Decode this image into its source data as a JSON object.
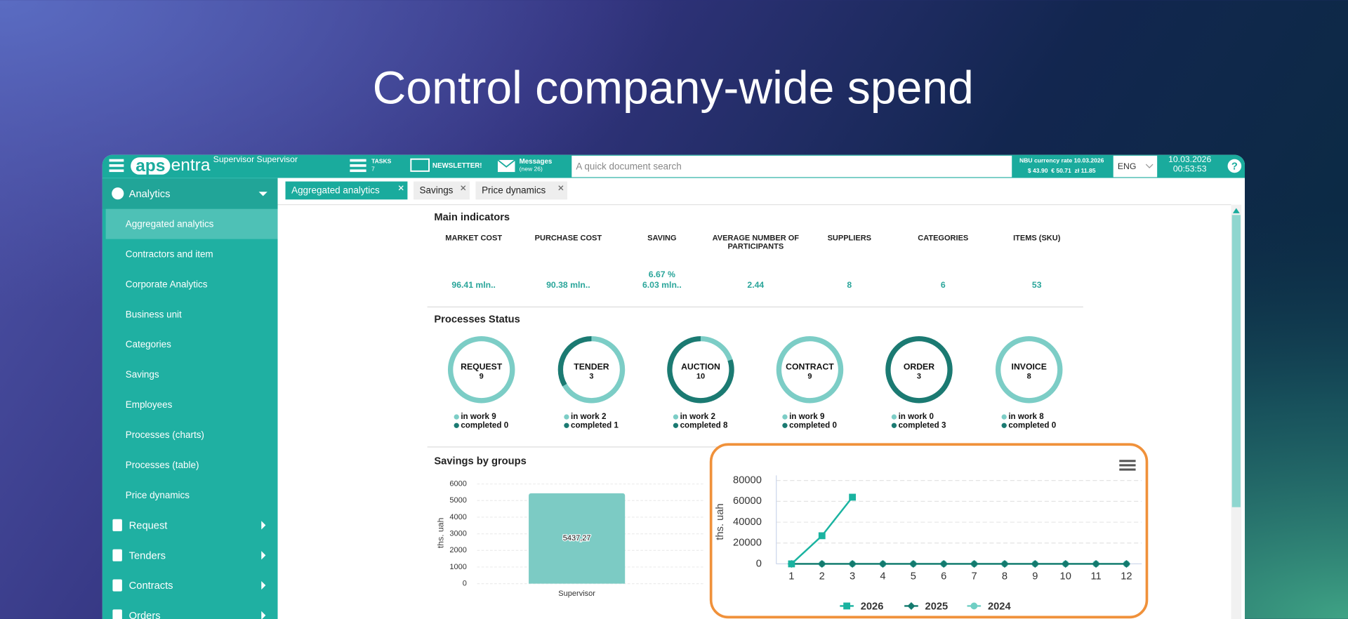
{
  "headline": "Control company-wide spend",
  "topbar": {
    "logo_mark": "aps",
    "logo_text": "entra",
    "user": "Supervisor Supervisor",
    "tasks": {
      "label": "TASKS",
      "count": 7
    },
    "newsletter": "NEWSLETTER!",
    "messages": {
      "label": "Messages",
      "note": "(new 26)"
    },
    "search_placeholder": "A quick document search",
    "currency": {
      "title": "NBU currency rate 10.03.2026",
      "rates": "$ 43.90  € 50.71  zł 11.85"
    },
    "language": "ENG",
    "date": "10.03.2026",
    "time": "00:53:53",
    "help": "?"
  },
  "sidebar": {
    "section": "Analytics",
    "items": [
      "Aggregated analytics",
      "Contractors and item",
      "Corporate Analytics",
      "Business unit",
      "Categories",
      "Savings",
      "Employees",
      "Processes (charts)",
      "Processes (table)",
      "Price dynamics"
    ],
    "menu": [
      "Request",
      "Tenders",
      "Contracts",
      "Orders"
    ]
  },
  "tabs": [
    "Aggregated analytics",
    "Savings",
    "Price dynamics"
  ],
  "main_indicators": {
    "title": "Main indicators",
    "columns": [
      {
        "label": [
          "MARKET COST"
        ],
        "values": [
          "96.41 mln.."
        ]
      },
      {
        "label": [
          "PURCHASE COST"
        ],
        "values": [
          "90.38 mln.."
        ]
      },
      {
        "label": [
          "SAVING"
        ],
        "values": [
          "6.67 %",
          "6.03 mln.."
        ]
      },
      {
        "label": [
          "AVERAGE NUMBER OF",
          "PARTICIPANTS"
        ],
        "values": [
          2.44
        ]
      },
      {
        "label": [
          "SUPPLIERS"
        ],
        "values": [
          8
        ]
      },
      {
        "label": [
          "CATEGORIES"
        ],
        "values": [
          6
        ]
      },
      {
        "label": [
          "ITEMS (SKU)"
        ],
        "values": [
          53
        ]
      }
    ]
  },
  "processes": {
    "title": "Processes Status",
    "in_work_label": "in work",
    "completed_label": "completed",
    "items": [
      {
        "name": "REQUEST",
        "total": 9,
        "in_work": 9,
        "completed": 0
      },
      {
        "name": "TENDER",
        "total": 3,
        "in_work": 2,
        "completed": 1
      },
      {
        "name": "AUCTION",
        "total": 10,
        "in_work": 2,
        "completed": 8
      },
      {
        "name": "CONTRACT",
        "total": 9,
        "in_work": 9,
        "completed": 0
      },
      {
        "name": "ORDER",
        "total": 3,
        "in_work": 0,
        "completed": 3
      },
      {
        "name": "INVOICE",
        "total": 8,
        "in_work": 8,
        "completed": 0
      }
    ]
  },
  "savings_chart": {
    "type": "bar",
    "title": "Savings by groups",
    "ylabel": "ths. uah",
    "categories": [
      "Supervisor"
    ],
    "values": [
      5437.27
    ],
    "value_labels": [
      "5437,27"
    ],
    "color": "#7ccbc4",
    "ylim": [
      0,
      6000
    ],
    "yticks": [
      0,
      1000,
      2000,
      3000,
      4000,
      5000,
      6000
    ],
    "grid": true
  },
  "line_chart": {
    "type": "line",
    "ylabel": "ths. uah",
    "x": [
      1,
      2,
      3,
      4,
      5,
      6,
      7,
      8,
      9,
      10,
      11,
      12
    ],
    "xlim": [
      0.5,
      12.5
    ],
    "xticks": [
      1,
      2,
      3,
      4,
      5,
      6,
      7,
      8,
      9,
      10,
      11,
      12
    ],
    "ylim": [
      0,
      80000
    ],
    "yticks": [
      0,
      20000,
      40000,
      60000,
      80000
    ],
    "grid": true,
    "series": [
      {
        "name": "2026",
        "color": "#1ab3a0",
        "marker": "square",
        "values": [
          0,
          27000,
          64000,
          null,
          null,
          null,
          null,
          null,
          null,
          null,
          null,
          null
        ]
      },
      {
        "name": "2025",
        "color": "#137a6e",
        "marker": "diamond",
        "values": [
          0,
          0,
          0,
          0,
          0,
          0,
          0,
          0,
          0,
          0,
          0,
          0
        ]
      },
      {
        "name": "2024",
        "color": "#6fcfc4",
        "marker": "circle",
        "values": [
          0,
          0,
          0,
          0,
          0,
          0,
          0,
          0,
          0,
          0,
          0,
          0
        ]
      }
    ]
  }
}
